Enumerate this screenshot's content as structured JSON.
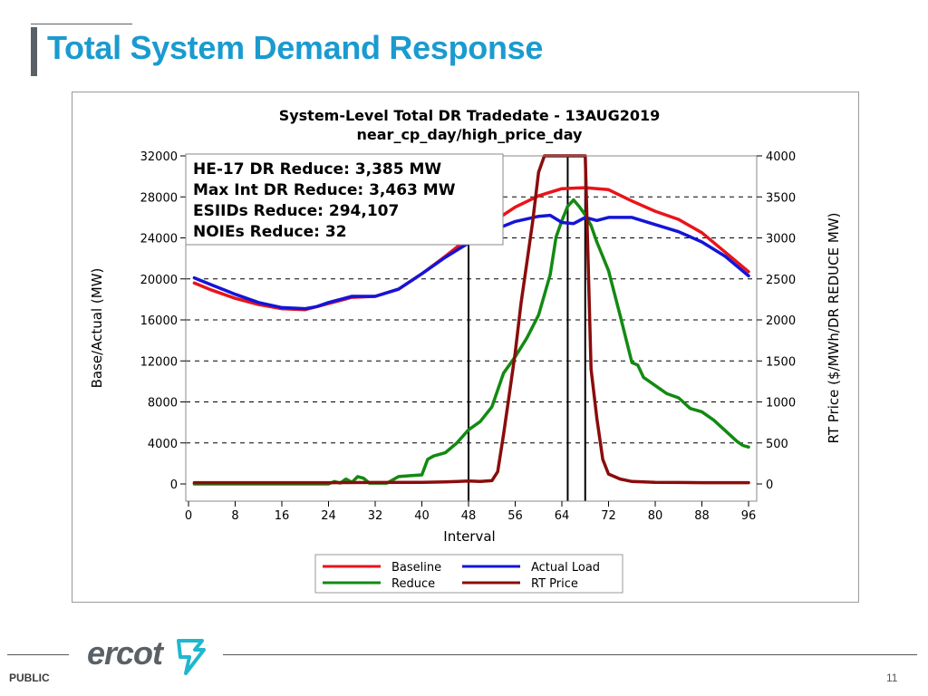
{
  "slide": {
    "title": "Total System Demand Response",
    "footer_label": "PUBLIC",
    "page_number": "11",
    "logo_text": "ercot",
    "colors": {
      "title": "#1a9bd0",
      "logo": "#5a6166",
      "logo_mark": "#1fb7cf"
    }
  },
  "chart_data": {
    "type": "line",
    "title": "System-Level Total DR  Tradedate - 13AUG2019",
    "subtitle": "near_cp_day/high_price_day",
    "xlabel": "Interval",
    "ylabel": "Base/Actual (MW)",
    "y2label": "RT Price ($/MWh/DR REDUCE MW)",
    "xlim": [
      0,
      96
    ],
    "ylim": [
      0,
      32000
    ],
    "y2lim": [
      0,
      4000
    ],
    "xticks": [
      "0",
      "8",
      "16",
      "24",
      "32",
      "40",
      "48",
      "56",
      "64",
      "72",
      "80",
      "88",
      "96"
    ],
    "yticks": [
      "0",
      "4000",
      "8000",
      "12000",
      "16000",
      "20000",
      "24000",
      "28000",
      "32000"
    ],
    "y2ticks": [
      "0",
      "500",
      "1000",
      "1500",
      "2000",
      "2500",
      "3000",
      "3500",
      "4000"
    ],
    "grid": "horizontal dashed",
    "legend_position": "bottom",
    "vertical_lines_x": [
      48,
      65,
      68
    ],
    "annotation": [
      "HE-17 DR Reduce: 3,385 MW",
      "Max Int DR Reduce: 3,463 MW",
      "ESIIDs Reduce: 294,107",
      "NOIEs Reduce: 32"
    ],
    "series": [
      {
        "name": "Baseline",
        "axis": "left",
        "color": "#e8141a",
        "x": [
          1,
          4,
          8,
          12,
          16,
          20,
          24,
          28,
          32,
          36,
          40,
          44,
          48,
          52,
          56,
          60,
          64,
          68,
          72,
          76,
          80,
          84,
          88,
          92,
          96
        ],
        "y": [
          19600,
          18900,
          18100,
          17500,
          17100,
          17000,
          17600,
          18200,
          18300,
          19000,
          20500,
          22200,
          24000,
          25500,
          27000,
          28100,
          28800,
          28900,
          28700,
          27600,
          26600,
          25800,
          24500,
          22600,
          20700
        ]
      },
      {
        "name": "Actual Load",
        "axis": "left",
        "color": "#1414d8",
        "x": [
          1,
          4,
          8,
          12,
          16,
          20,
          22,
          24,
          28,
          32,
          36,
          40,
          44,
          48,
          52,
          56,
          60,
          62,
          64,
          66,
          68,
          70,
          72,
          76,
          80,
          84,
          88,
          92,
          96
        ],
        "y": [
          20100,
          19400,
          18500,
          17700,
          17200,
          17100,
          17300,
          17700,
          18300,
          18300,
          19000,
          20500,
          22100,
          23500,
          24700,
          25600,
          26100,
          26200,
          25500,
          25400,
          26000,
          25700,
          26000,
          26000,
          25300,
          24600,
          23600,
          22200,
          20300
        ]
      },
      {
        "name": "Reduce",
        "axis": "right",
        "color": "#128a12",
        "x": [
          1,
          8,
          16,
          24,
          25,
          26,
          27,
          28,
          29,
          30,
          31,
          32,
          34,
          36,
          38,
          40,
          41,
          42,
          44,
          46,
          48,
          50,
          52,
          54,
          56,
          58,
          60,
          62,
          63,
          64,
          65,
          66,
          67,
          68,
          69,
          70,
          72,
          74,
          76,
          77,
          78,
          79,
          80,
          82,
          84,
          86,
          88,
          90,
          92,
          94,
          95,
          96
        ],
        "y": [
          0,
          0,
          0,
          0,
          30,
          10,
          60,
          20,
          90,
          70,
          10,
          10,
          10,
          90,
          100,
          110,
          300,
          340,
          380,
          500,
          660,
          760,
          940,
          1350,
          1550,
          1780,
          2060,
          2550,
          3010,
          3210,
          3385,
          3463,
          3380,
          3280,
          3150,
          2950,
          2600,
          2050,
          1480,
          1450,
          1300,
          1250,
          1200,
          1100,
          1050,
          920,
          880,
          780,
          650,
          520,
          470,
          450
        ]
      },
      {
        "name": "RT Price",
        "axis": "right",
        "color": "#8a0c0c",
        "x": [
          1,
          8,
          16,
          24,
          32,
          40,
          44,
          48,
          50,
          52,
          53,
          54,
          55,
          56,
          57,
          58,
          59,
          60,
          61,
          62,
          63,
          64,
          65,
          66,
          67,
          68,
          69,
          70,
          71,
          72,
          74,
          76,
          80,
          84,
          88,
          96
        ],
        "y": [
          15,
          15,
          15,
          15,
          18,
          20,
          25,
          35,
          30,
          40,
          150,
          600,
          1100,
          1600,
          2200,
          2700,
          3200,
          3800,
          4000,
          4000,
          4000,
          4000,
          4000,
          4000,
          4000,
          4000,
          1400,
          800,
          300,
          120,
          60,
          30,
          20,
          18,
          15,
          15
        ]
      }
    ]
  }
}
